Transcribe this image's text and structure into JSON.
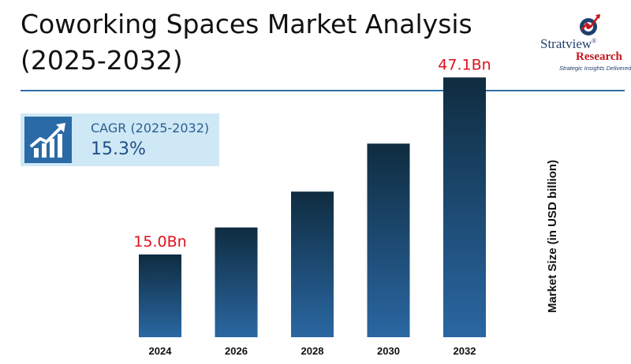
{
  "header": {
    "title_line1": "Coworking Spaces Market Analysis",
    "title_line2": "(2025-2032)"
  },
  "logo": {
    "name": "Stratview",
    "reg": "®",
    "sub": "Research",
    "tagline": "Strategic Insights Delivered"
  },
  "cagr": {
    "label": "CAGR (2025-2032)",
    "value": "15.3%",
    "icon": "growth-chart-icon"
  },
  "colors": {
    "bar_top": "#0f2c40",
    "bar_bottom": "#2a67a2",
    "data_label": "#e0111b",
    "rule": "#2d6fa6"
  },
  "chart_data": {
    "type": "bar",
    "categories": [
      "2024",
      "2026",
      "2028",
      "2030",
      "2032"
    ],
    "values": [
      15.0,
      19.9,
      26.4,
      35.1,
      47.1
    ],
    "data_labels": [
      "15.0Bn",
      "",
      "",
      "",
      "47.1Bn"
    ],
    "ylabel": "Market Size (in USD billion)",
    "ylim": [
      0,
      50
    ],
    "grid": false,
    "legend": "none"
  }
}
